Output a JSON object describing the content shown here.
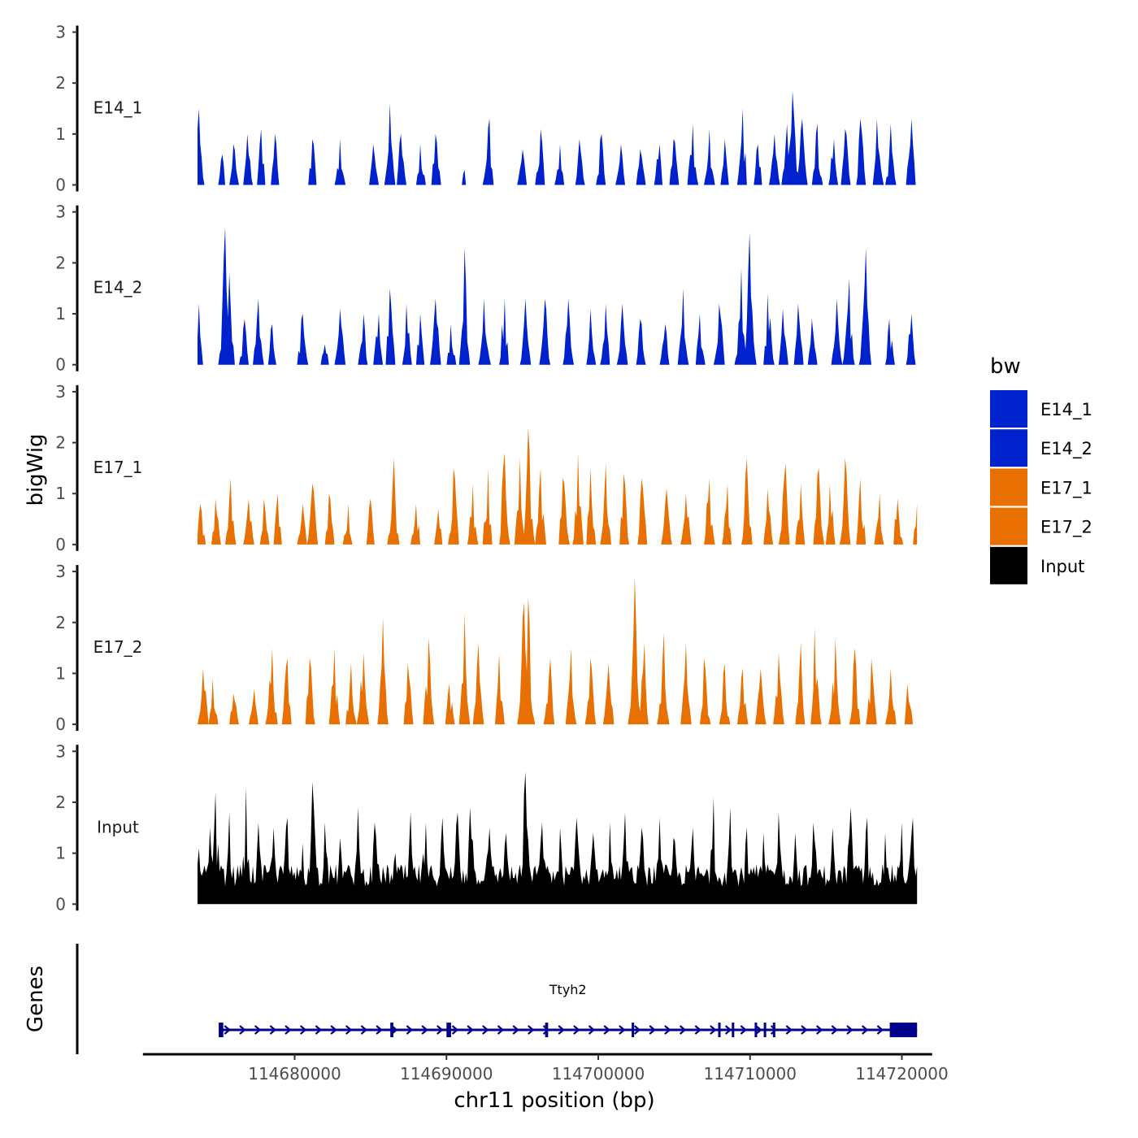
{
  "chart_data": {
    "type": "area",
    "title": "",
    "xlabel": "chr11 position (bp)",
    "ylabel": "bigWig",
    "genes_label": "Genes",
    "xlim": [
      114670000,
      114722000
    ],
    "data_range": [
      114673600,
      114721000
    ],
    "xticks": [
      114680000,
      114690000,
      114700000,
      114710000,
      114720000
    ],
    "xtick_labels": [
      "114680000",
      "114690000",
      "114700000",
      "114710000",
      "114720000"
    ],
    "ylim": [
      0,
      3
    ],
    "yticks": [
      0,
      1,
      2,
      3
    ],
    "ytick_labels": [
      "0",
      "1",
      "2",
      "3"
    ],
    "legend": {
      "title": "bw",
      "position": "right",
      "entries": [
        {
          "label": "E14_1",
          "color": "#0022cc"
        },
        {
          "label": "E14_2",
          "color": "#0022cc"
        },
        {
          "label": "E17_1",
          "color": "#e87000"
        },
        {
          "label": "E17_2",
          "color": "#e87000"
        },
        {
          "label": "Input",
          "color": "#000000"
        }
      ]
    },
    "series": [
      {
        "name": "E14_1",
        "color": "#0022cc",
        "peaks": [
          [
            114673650,
            1.5
          ],
          [
            114675200,
            0.6
          ],
          [
            114676000,
            0.8
          ],
          [
            114676900,
            1.0
          ],
          [
            114677800,
            1.1
          ],
          [
            114678700,
            1.0
          ],
          [
            114681200,
            0.9
          ],
          [
            114683000,
            0.9
          ],
          [
            114685200,
            0.8
          ],
          [
            114686300,
            1.6
          ],
          [
            114687000,
            1.0
          ],
          [
            114688300,
            0.8
          ],
          [
            114689300,
            1.0
          ],
          [
            114691200,
            0.3
          ],
          [
            114692800,
            1.3
          ],
          [
            114695000,
            0.7
          ],
          [
            114696200,
            1.1
          ],
          [
            114697500,
            0.8
          ],
          [
            114698800,
            0.9
          ],
          [
            114700200,
            1.0
          ],
          [
            114701500,
            0.8
          ],
          [
            114702800,
            0.7
          ],
          [
            114704000,
            0.8
          ],
          [
            114705000,
            0.9
          ],
          [
            114706200,
            1.2
          ],
          [
            114707300,
            1.1
          ],
          [
            114708300,
            0.9
          ],
          [
            114709500,
            1.5
          ],
          [
            114710500,
            0.8
          ],
          [
            114711600,
            1.0
          ],
          [
            114712400,
            1.2
          ],
          [
            114712800,
            1.85
          ],
          [
            114713400,
            1.3
          ],
          [
            114714400,
            1.2
          ],
          [
            114715500,
            0.9
          ],
          [
            114716300,
            1.1
          ],
          [
            114717300,
            1.3
          ],
          [
            114718400,
            1.3
          ],
          [
            114719300,
            1.2
          ],
          [
            114720600,
            1.3
          ]
        ]
      },
      {
        "name": "E14_2",
        "color": "#0022cc",
        "peaks": [
          [
            114673650,
            1.2
          ],
          [
            114675400,
            2.7
          ],
          [
            114675700,
            1.8
          ],
          [
            114676700,
            0.9
          ],
          [
            114677600,
            1.3
          ],
          [
            114678500,
            0.8
          ],
          [
            114680500,
            1.0
          ],
          [
            114682000,
            0.4
          ],
          [
            114683000,
            1.1
          ],
          [
            114684500,
            1.0
          ],
          [
            114685500,
            1.0
          ],
          [
            114686300,
            1.5
          ],
          [
            114687400,
            1.2
          ],
          [
            114688300,
            1.0
          ],
          [
            114689300,
            1.3
          ],
          [
            114690300,
            0.8
          ],
          [
            114691200,
            2.3
          ],
          [
            114692500,
            1.3
          ],
          [
            114693800,
            1.3
          ],
          [
            114695200,
            1.3
          ],
          [
            114696500,
            1.3
          ],
          [
            114698000,
            1.3
          ],
          [
            114699500,
            1.1
          ],
          [
            114700500,
            1.2
          ],
          [
            114701600,
            1.2
          ],
          [
            114702800,
            0.9
          ],
          [
            114704400,
            0.8
          ],
          [
            114705600,
            1.5
          ],
          [
            114706700,
            1.0
          ],
          [
            114708000,
            1.2
          ],
          [
            114709400,
            1.9
          ],
          [
            114710000,
            2.6
          ],
          [
            114711200,
            1.4
          ],
          [
            114712200,
            1.1
          ],
          [
            114713200,
            1.2
          ],
          [
            114714100,
            0.9
          ],
          [
            114715700,
            1.3
          ],
          [
            114716500,
            1.7
          ],
          [
            114717600,
            2.3
          ],
          [
            114719200,
            0.9
          ],
          [
            114720600,
            1.0
          ]
        ]
      },
      {
        "name": "E17_1",
        "color": "#e87000",
        "peaks": [
          [
            114673800,
            0.8
          ],
          [
            114674800,
            0.9
          ],
          [
            114675800,
            1.3
          ],
          [
            114677000,
            0.9
          ],
          [
            114678000,
            0.9
          ],
          [
            114678900,
            1.0
          ],
          [
            114680500,
            0.8
          ],
          [
            114681200,
            1.2
          ],
          [
            114682300,
            1.0
          ],
          [
            114683500,
            0.8
          ],
          [
            114685000,
            0.9
          ],
          [
            114686500,
            1.7
          ],
          [
            114688000,
            0.8
          ],
          [
            114689500,
            0.7
          ],
          [
            114690500,
            1.5
          ],
          [
            114691700,
            1.2
          ],
          [
            114692700,
            1.5
          ],
          [
            114693800,
            1.8
          ],
          [
            114694800,
            1.7
          ],
          [
            114695400,
            2.3
          ],
          [
            114696200,
            1.5
          ],
          [
            114697700,
            1.3
          ],
          [
            114698700,
            1.8
          ],
          [
            114699500,
            1.5
          ],
          [
            114700500,
            1.6
          ],
          [
            114701700,
            1.4
          ],
          [
            114702900,
            1.3
          ],
          [
            114704500,
            1.1
          ],
          [
            114705800,
            1.0
          ],
          [
            114707300,
            1.3
          ],
          [
            114708500,
            1.2
          ],
          [
            114709800,
            1.7
          ],
          [
            114711200,
            1.1
          ],
          [
            114712300,
            1.6
          ],
          [
            114713300,
            1.2
          ],
          [
            114714500,
            1.5
          ],
          [
            114715300,
            1.2
          ],
          [
            114716300,
            1.7
          ],
          [
            114717300,
            1.3
          ],
          [
            114718500,
            1.0
          ],
          [
            114719700,
            0.9
          ],
          [
            114721000,
            0.8
          ]
        ]
      },
      {
        "name": "E17_2",
        "color": "#e87000",
        "peaks": [
          [
            114674000,
            1.1
          ],
          [
            114674600,
            0.9
          ],
          [
            114676000,
            0.6
          ],
          [
            114677300,
            0.7
          ],
          [
            114678500,
            1.5
          ],
          [
            114679500,
            1.3
          ],
          [
            114681000,
            1.3
          ],
          [
            114682600,
            1.5
          ],
          [
            114683700,
            1.2
          ],
          [
            114684500,
            1.4
          ],
          [
            114685800,
            2.1
          ],
          [
            114687500,
            1.2
          ],
          [
            114688800,
            1.7
          ],
          [
            114690200,
            0.8
          ],
          [
            114691200,
            2.2
          ],
          [
            114692100,
            1.6
          ],
          [
            114693500,
            1.4
          ],
          [
            114695100,
            2.4
          ],
          [
            114695400,
            2.5
          ],
          [
            114696800,
            1.3
          ],
          [
            114698200,
            1.5
          ],
          [
            114699500,
            1.3
          ],
          [
            114700700,
            1.2
          ],
          [
            114702400,
            2.9
          ],
          [
            114703000,
            1.6
          ],
          [
            114704300,
            1.8
          ],
          [
            114705800,
            1.6
          ],
          [
            114707000,
            1.3
          ],
          [
            114708300,
            1.2
          ],
          [
            114709500,
            1.1
          ],
          [
            114710700,
            1.1
          ],
          [
            114711900,
            1.4
          ],
          [
            114713300,
            1.6
          ],
          [
            114714300,
            1.9
          ],
          [
            114715600,
            1.7
          ],
          [
            114716900,
            1.5
          ],
          [
            114718000,
            1.3
          ],
          [
            114719300,
            1.1
          ],
          [
            114720400,
            0.8
          ]
        ]
      },
      {
        "name": "Input",
        "color": "#000000",
        "peaks": [
          [
            114673650,
            1.1
          ],
          [
            114674400,
            1.5
          ],
          [
            114674800,
            2.2
          ],
          [
            114675700,
            1.8
          ],
          [
            114676800,
            2.3
          ],
          [
            114677600,
            1.6
          ],
          [
            114678600,
            1.5
          ],
          [
            114679500,
            1.7
          ],
          [
            114680500,
            1.2
          ],
          [
            114681200,
            2.4
          ],
          [
            114682000,
            1.6
          ],
          [
            114683000,
            1.3
          ],
          [
            114684200,
            1.9
          ],
          [
            114685300,
            1.6
          ],
          [
            114686600,
            1.0
          ],
          [
            114687600,
            1.8
          ],
          [
            114688600,
            1.6
          ],
          [
            114689700,
            1.7
          ],
          [
            114690700,
            1.8
          ],
          [
            114691600,
            1.9
          ],
          [
            114692800,
            1.5
          ],
          [
            114693900,
            1.4
          ],
          [
            114695200,
            2.6
          ],
          [
            114696300,
            1.6
          ],
          [
            114697500,
            1.5
          ],
          [
            114698600,
            1.7
          ],
          [
            114699700,
            1.4
          ],
          [
            114700800,
            1.6
          ],
          [
            114701800,
            1.8
          ],
          [
            114702900,
            1.5
          ],
          [
            114704000,
            1.7
          ],
          [
            114705000,
            1.3
          ],
          [
            114706200,
            1.5
          ],
          [
            114707600,
            2.1
          ],
          [
            114708700,
            1.9
          ],
          [
            114709800,
            1.5
          ],
          [
            114710900,
            1.4
          ],
          [
            114711900,
            1.8
          ],
          [
            114713000,
            1.4
          ],
          [
            114714200,
            1.6
          ],
          [
            114715400,
            1.5
          ],
          [
            114716600,
            1.9
          ],
          [
            114717700,
            1.7
          ],
          [
            114718900,
            1.4
          ],
          [
            114720000,
            1.6
          ],
          [
            114720700,
            1.7
          ]
        ]
      }
    ],
    "gene_track": {
      "gene": "Ttyh2",
      "strand": "+",
      "color": "#00008b",
      "start": 114675000,
      "end": 114721000,
      "exons": [
        [
          114675000,
          114675300
        ],
        [
          114686300,
          114686500
        ],
        [
          114690000,
          114690300
        ],
        [
          114696500,
          114696700
        ],
        [
          114702200,
          114702300
        ],
        [
          114707900,
          114708000
        ],
        [
          114708800,
          114708900
        ],
        [
          114710300,
          114710400
        ],
        [
          114710900,
          114711000
        ],
        [
          114711500,
          114711600
        ],
        [
          114719200,
          114721000
        ]
      ]
    }
  }
}
